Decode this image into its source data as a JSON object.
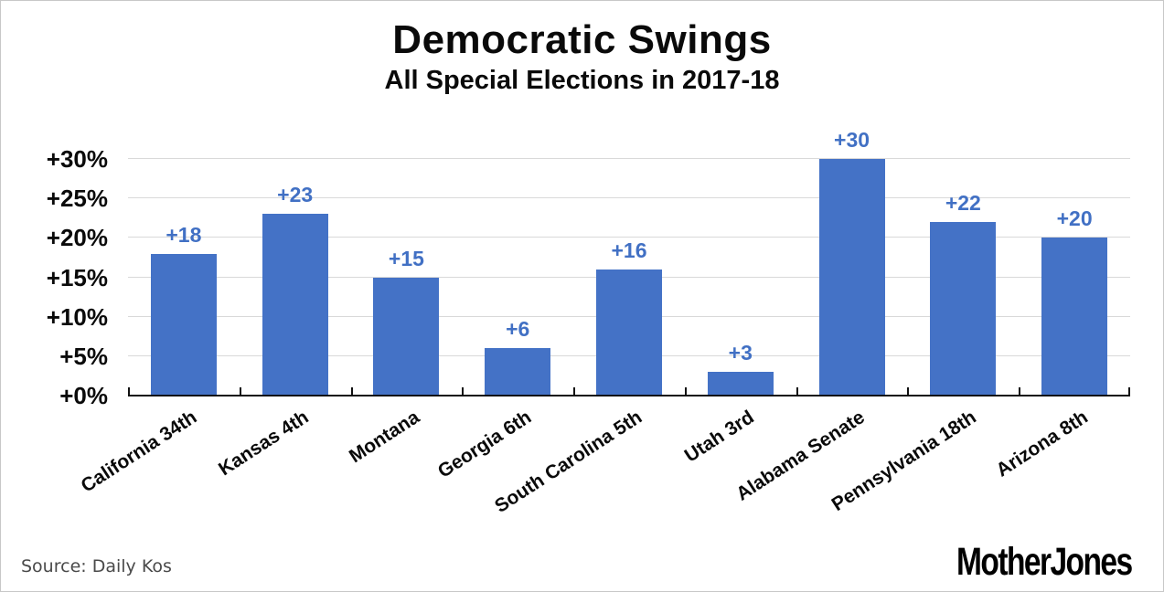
{
  "title": "Democratic Swings",
  "subtitle": "All Special Elections in 2017-18",
  "source": "Source: Daily Kos",
  "branding": "MotherJones",
  "colors": {
    "bar": "#4472c6",
    "bar_label": "#4170c4",
    "grid": "#d9d9d9",
    "axis": "#111111",
    "title_text": "#0a0a0a",
    "source_text": "#4a4a4a",
    "branding_text": "#d9d9d9",
    "frame_border": "#c8c8c8"
  },
  "chart_data": {
    "type": "bar",
    "title": "Democratic Swings",
    "subtitle": "All Special Elections in 2017-18",
    "categories": [
      "California 34th",
      "Kansas 4th",
      "Montana",
      "Georgia 6th",
      "South Carolina 5th",
      "Utah 3rd",
      "Alabama Senate",
      "Pennsylvania 18th",
      "Arizona 8th"
    ],
    "values": [
      18,
      23,
      15,
      6,
      16,
      3,
      30,
      22,
      20
    ],
    "bar_labels": [
      "+18",
      "+23",
      "+15",
      "+6",
      "+16",
      "+3",
      "+30",
      "+22",
      "+20"
    ],
    "xlabel": "",
    "ylabel": "",
    "ylim": [
      0,
      30
    ],
    "y_tick_step": 5,
    "y_tick_labels": [
      "+0%",
      "+5%",
      "+10%",
      "+15%",
      "+20%",
      "+25%",
      "+30%"
    ],
    "grid": true,
    "legend": false,
    "source": "Daily Kos"
  }
}
